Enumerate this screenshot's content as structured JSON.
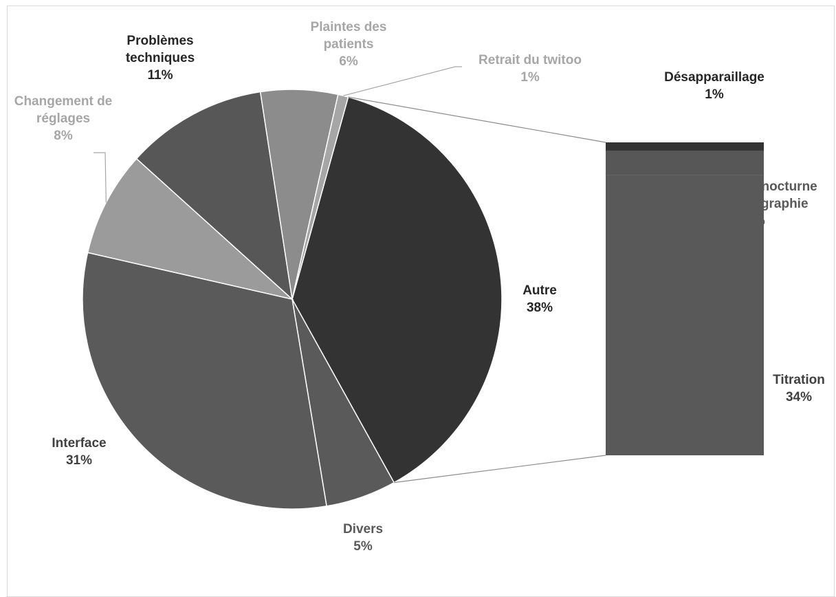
{
  "chart_data": {
    "type": "pie",
    "subtype": "bar-of-pie",
    "pie_slices": [
      {
        "label": [
          "Autre"
        ],
        "percent": "38%",
        "value": 38,
        "color": "#333333",
        "label_color": "#262626"
      },
      {
        "label": [
          "Divers"
        ],
        "percent": "5%",
        "value": 5.5,
        "color": "#5a5a5a",
        "label_color": "#595959"
      },
      {
        "label": [
          "Interface"
        ],
        "percent": "31%",
        "value": 31.5,
        "color": "#5a5a5a",
        "label_color": "#404040"
      },
      {
        "label": [
          "Changement de",
          "réglages"
        ],
        "percent": "8%",
        "value": 8.2,
        "color": "#9b9b9b",
        "label_color": "#a6a6a6"
      },
      {
        "label": [
          "Problèmes",
          "techniques"
        ],
        "percent": "11%",
        "value": 11,
        "color": "#575757",
        "label_color": "#262626"
      },
      {
        "label": [
          "Plaintes des",
          "patients"
        ],
        "percent": "6%",
        "value": 6,
        "color": "#8c8c8c",
        "label_color": "#a6a6a6"
      },
      {
        "label": [
          "Retrait du twitoo"
        ],
        "percent": "1%",
        "value": 0.8,
        "color": "#a6a6a6",
        "label_color": "#a6a6a6"
      }
    ],
    "bar_segments": [
      {
        "label": [
          "Désapparaillage"
        ],
        "percent": "1%",
        "value": 1,
        "color": "#333333",
        "label_color": "#262626"
      },
      {
        "label": [
          "Oxymétrie nocturne",
          "ou capnographie"
        ],
        "percent": "3%",
        "value": 3,
        "color": "#575757",
        "label_color": "#595959"
      },
      {
        "label": [
          "Titration"
        ],
        "percent": "34%",
        "value": 34,
        "color": "#595959",
        "label_color": "#404040"
      }
    ],
    "legend": "none"
  }
}
